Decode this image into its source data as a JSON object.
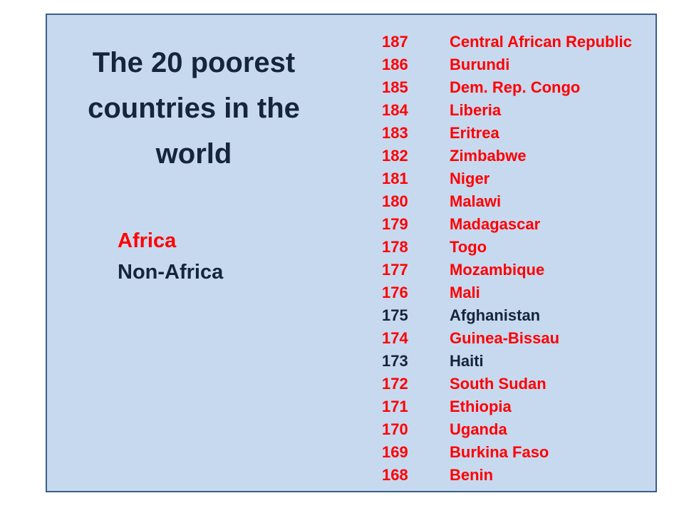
{
  "slide": {
    "title_lines": [
      "The 20 poorest",
      "countries in the",
      "world"
    ],
    "legend": {
      "africa_label": "Africa",
      "non_africa_label": "Non-Africa"
    },
    "colors": {
      "africa": "#ff0000",
      "non_africa": "#14253d",
      "panel_background": "#c7d9ef",
      "panel_border": "#3a5f8a"
    },
    "rankings": [
      {
        "rank": "187",
        "country": "Central African Republic",
        "region": "africa"
      },
      {
        "rank": "186",
        "country": "Burundi",
        "region": "africa"
      },
      {
        "rank": "185",
        "country": "Dem. Rep. Congo",
        "region": "africa"
      },
      {
        "rank": "184",
        "country": "Liberia",
        "region": "africa"
      },
      {
        "rank": "183",
        "country": "Eritrea",
        "region": "africa"
      },
      {
        "rank": "182",
        "country": "Zimbabwe",
        "region": "africa"
      },
      {
        "rank": "181",
        "country": "Niger",
        "region": "africa"
      },
      {
        "rank": "180",
        "country": "Malawi",
        "region": "africa"
      },
      {
        "rank": "179",
        "country": "Madagascar",
        "region": "africa"
      },
      {
        "rank": "178",
        "country": "Togo",
        "region": "africa"
      },
      {
        "rank": "177",
        "country": "Mozambique",
        "region": "africa"
      },
      {
        "rank": "176",
        "country": "Mali",
        "region": "africa"
      },
      {
        "rank": "175",
        "country": "Afghanistan",
        "region": "non-africa"
      },
      {
        "rank": "174",
        "country": "Guinea-Bissau",
        "region": "africa"
      },
      {
        "rank": "173",
        "country": "Haiti",
        "region": "non-africa"
      },
      {
        "rank": "172",
        "country": "South Sudan",
        "region": "africa"
      },
      {
        "rank": "171",
        "country": "Ethiopia",
        "region": "africa"
      },
      {
        "rank": "170",
        "country": "Uganda",
        "region": "africa"
      },
      {
        "rank": "169",
        "country": "Burkina Faso",
        "region": "africa"
      },
      {
        "rank": "168",
        "country": "Benin",
        "region": "africa"
      }
    ]
  }
}
